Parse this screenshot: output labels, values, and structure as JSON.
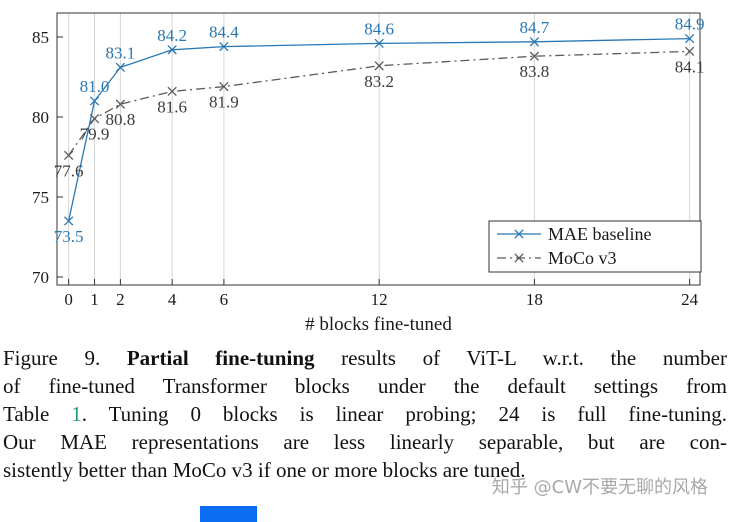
{
  "chart_data": {
    "type": "line",
    "title": "",
    "xlabel": "# blocks fine-tuned",
    "ylabel": "",
    "x": [
      0,
      1,
      2,
      4,
      6,
      12,
      18,
      24
    ],
    "xticks": [
      0,
      1,
      2,
      4,
      6,
      12,
      18,
      24
    ],
    "yticks": [
      70,
      75,
      80,
      85
    ],
    "xlim": [
      -0.45,
      24.4
    ],
    "ylim": [
      69.5,
      86.5
    ],
    "grid": "vertical",
    "grid_color": "#d6d6d6",
    "axis_color": "#333333",
    "text_color": "#1a1a1a",
    "legend_position": "lower right",
    "series": [
      {
        "name": "MAE baseline",
        "color": "#2878b5",
        "label_color": "#2878b5",
        "line_style": "solid",
        "marker": "x",
        "values": [
          73.5,
          81.0,
          83.1,
          84.2,
          84.4,
          84.6,
          84.7,
          84.9
        ],
        "labels": [
          "73.5",
          "81.0",
          "83.1",
          "84.2",
          "84.4",
          "84.6",
          "84.7",
          "84.9"
        ],
        "label_positions": [
          "below",
          "above",
          "above",
          "above",
          "above",
          "above",
          "above",
          "above"
        ]
      },
      {
        "name": "MoCo v3",
        "color": "#5a5a5a",
        "label_color": "#3c3c3c",
        "line_style": "dashdot",
        "marker": "x",
        "values": [
          77.6,
          79.9,
          80.8,
          81.6,
          81.9,
          83.2,
          83.8,
          84.1
        ],
        "labels": [
          "77.6",
          "79.9",
          "80.8",
          "81.6",
          "81.9",
          "83.2",
          "83.8",
          "84.1"
        ],
        "label_positions": [
          "below",
          "below",
          "below",
          "below",
          "below",
          "below",
          "below",
          "below"
        ]
      }
    ]
  },
  "caption": {
    "link_color": "#1e9e6a",
    "lines": [
      [
        {
          "t": "Figure 9. "
        },
        {
          "t": "Partial fine-tuning",
          "b": true
        },
        {
          "t": " results of ViT-L w.r.t. the number"
        }
      ],
      [
        {
          "t": "of fine-tuned Transformer blocks under the default settings from"
        }
      ],
      [
        {
          "t": "Table "
        },
        {
          "t": "1",
          "link": true
        },
        {
          "t": ". Tuning 0 blocks is linear probing; 24 is full fine-tuning."
        }
      ],
      [
        {
          "t": "Our MAE representations are less linearly separable, but are con-"
        }
      ],
      [
        {
          "t": "sistently better than MoCo v3 if one or more blocks are tuned."
        }
      ]
    ]
  },
  "watermark": {
    "text": "知乎 @CW不要无聊的风格",
    "color": "#9a9a9a",
    "logo_color": "#0a6cf0"
  }
}
